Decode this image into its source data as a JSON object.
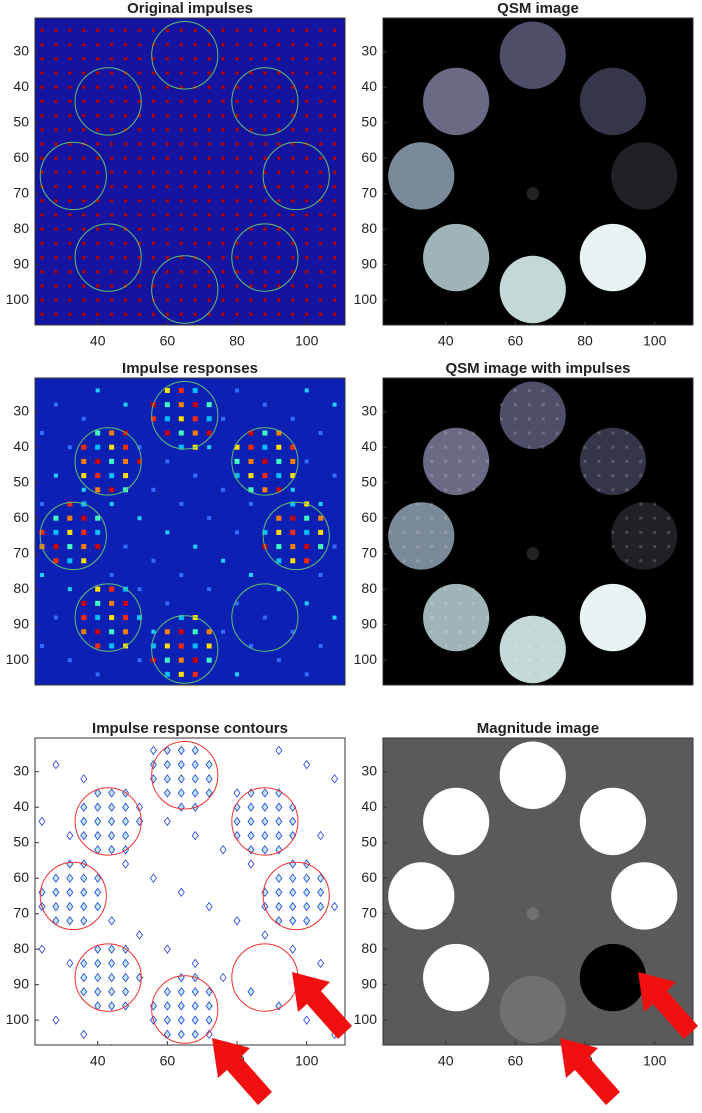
{
  "chart_data": [
    {
      "type": "image",
      "colormap": "jet",
      "title": "Original impulses",
      "xlim": [
        22,
        111
      ],
      "ylim": [
        20.5,
        107
      ],
      "xticks": [
        40,
        60,
        80,
        100
      ],
      "yticks": [
        30,
        40,
        50,
        60,
        70,
        80,
        90,
        100
      ]
    },
    {
      "type": "image",
      "colormap": "gray",
      "title": "QSM image",
      "xlim": [
        22,
        111
      ],
      "ylim": [
        20.5,
        107
      ],
      "xticks": [
        40,
        60,
        80,
        100
      ],
      "yticks": [
        30,
        40,
        50,
        60,
        70,
        80,
        90,
        100
      ]
    },
    {
      "type": "image",
      "colormap": "jet",
      "title": "Impulse responses",
      "xlim": [
        22,
        111
      ],
      "ylim": [
        20.5,
        107
      ],
      "yticks": [
        30,
        40,
        50,
        60,
        70,
        80,
        90,
        100
      ]
    },
    {
      "type": "image",
      "colormap": "gray",
      "title": "QSM image with impulses",
      "xlim": [
        22,
        111
      ],
      "ylim": [
        20.5,
        107
      ],
      "yticks": [
        30,
        40,
        50,
        60,
        70,
        80,
        90,
        100
      ]
    },
    {
      "type": "image",
      "colormap": "contour",
      "title": "Impulse response contours",
      "xlim": [
        22,
        111
      ],
      "ylim": [
        20.5,
        107
      ],
      "xticks": [
        40,
        60,
        80,
        100
      ],
      "yticks": [
        30,
        40,
        50,
        60,
        70,
        80,
        90,
        100
      ]
    },
    {
      "type": "image",
      "colormap": "magnitude",
      "title": "Magnitude image",
      "xlim": [
        22,
        111
      ],
      "ylim": [
        20.5,
        107
      ],
      "xticks": [
        40,
        60,
        80,
        100
      ],
      "yticks": [
        30,
        40,
        50,
        60,
        70,
        80,
        90,
        100
      ]
    }
  ]
}
